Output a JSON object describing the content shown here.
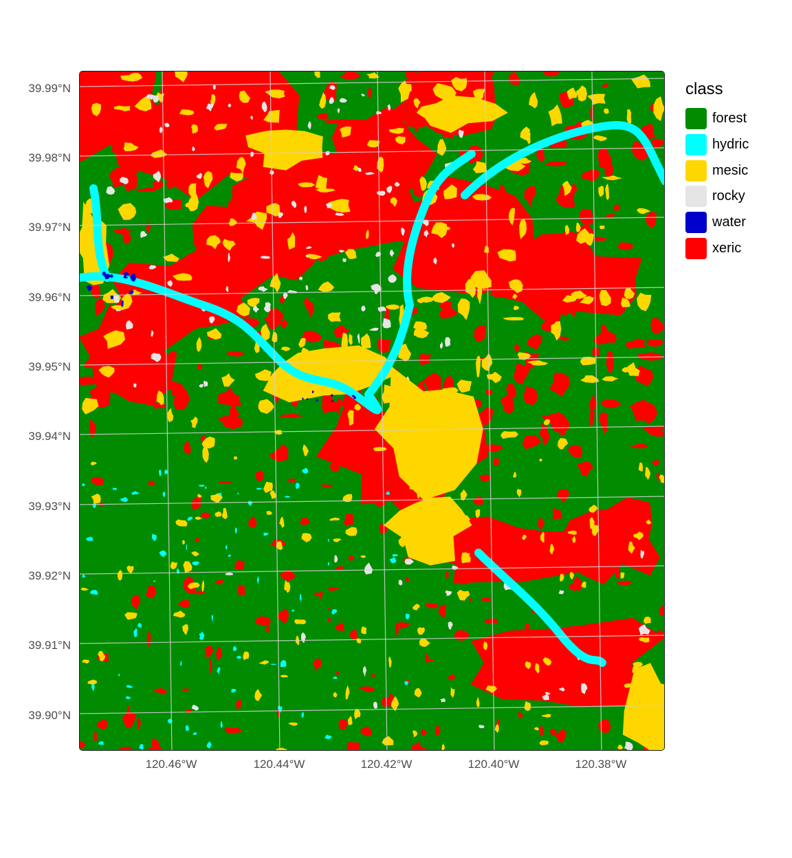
{
  "legend": {
    "title": "class",
    "items": [
      {
        "label": "forest",
        "color": "#008B00"
      },
      {
        "label": "hydric",
        "color": "#00FFFF"
      },
      {
        "label": "mesic",
        "color": "#FFD700"
      },
      {
        "label": "rocky",
        "color": "#E5E5E5"
      },
      {
        "label": "water",
        "color": "#0000CD"
      },
      {
        "label": "xeric",
        "color": "#FF0000"
      }
    ]
  },
  "axes": {
    "y_labels": [
      "39.99°N",
      "39.98°N",
      "39.97°N",
      "39.96°N",
      "39.95°N",
      "39.94°N",
      "39.93°N",
      "39.92°N",
      "39.91°N",
      "39.90°N"
    ],
    "x_labels": [
      "120.46°W",
      "120.44°W",
      "120.42°W",
      "120.40°W",
      "120.38°W"
    ]
  },
  "colors": {
    "forest": "#008B00",
    "hydric": "#00FFFF",
    "mesic": "#FFD700",
    "rocky": "#E5E5E5",
    "water": "#0000CD",
    "xeric": "#FF0000",
    "graticule": "#d0d0d0"
  }
}
